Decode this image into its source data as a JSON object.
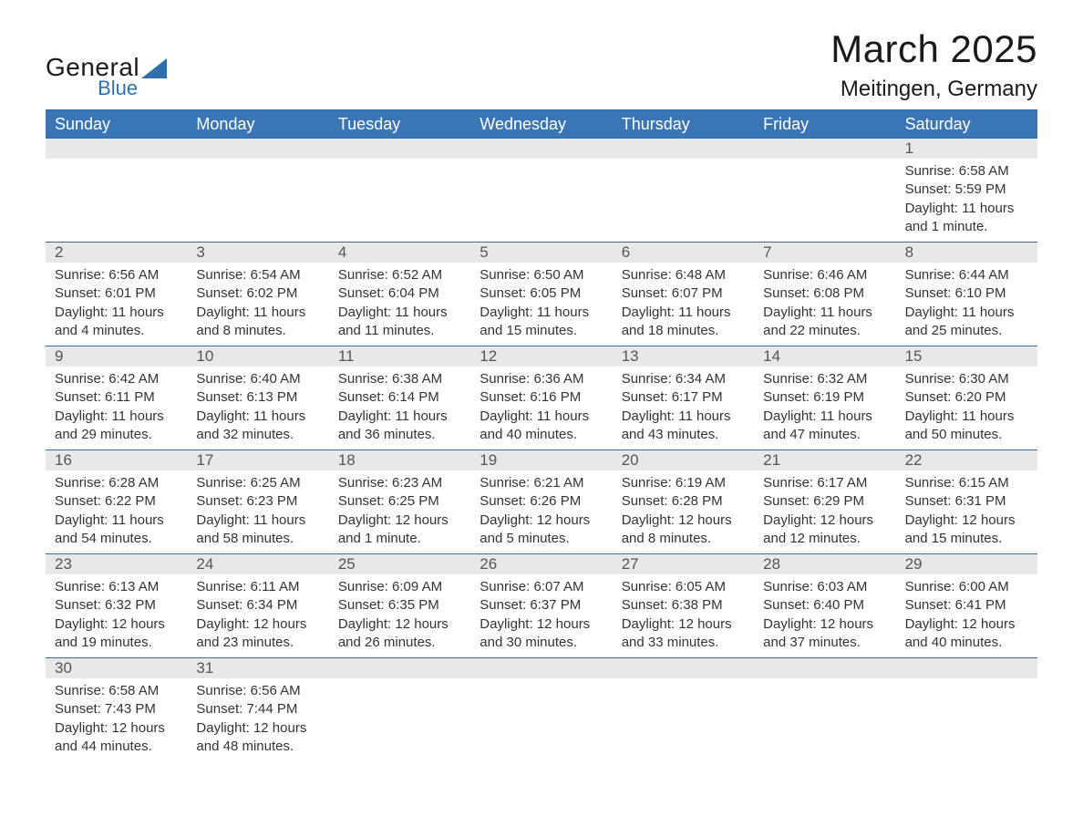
{
  "logo": {
    "text_general": "General",
    "text_blue": "Blue",
    "shape_color": "#2f6fad"
  },
  "header": {
    "month_title": "March 2025",
    "location": "Meitingen, Germany"
  },
  "colors": {
    "header_bg": "#3a76b5",
    "band_bg": "#e8e8e8",
    "rule": "#2f6fad",
    "text": "#333333",
    "text_muted": "#555555",
    "bg": "#ffffff"
  },
  "day_labels": [
    "Sunday",
    "Monday",
    "Tuesday",
    "Wednesday",
    "Thursday",
    "Friday",
    "Saturday"
  ],
  "label_prefix": {
    "sunrise": "Sunrise: ",
    "sunset": "Sunset: ",
    "daylight": "Daylight: "
  },
  "grid": {
    "leading_blanks": 6,
    "trailing_blanks": 5
  },
  "days": [
    {
      "n": "1",
      "sunrise": "6:58 AM",
      "sunset": "5:59 PM",
      "daylight": "11 hours and 1 minute."
    },
    {
      "n": "2",
      "sunrise": "6:56 AM",
      "sunset": "6:01 PM",
      "daylight": "11 hours and 4 minutes."
    },
    {
      "n": "3",
      "sunrise": "6:54 AM",
      "sunset": "6:02 PM",
      "daylight": "11 hours and 8 minutes."
    },
    {
      "n": "4",
      "sunrise": "6:52 AM",
      "sunset": "6:04 PM",
      "daylight": "11 hours and 11 minutes."
    },
    {
      "n": "5",
      "sunrise": "6:50 AM",
      "sunset": "6:05 PM",
      "daylight": "11 hours and 15 minutes."
    },
    {
      "n": "6",
      "sunrise": "6:48 AM",
      "sunset": "6:07 PM",
      "daylight": "11 hours and 18 minutes."
    },
    {
      "n": "7",
      "sunrise": "6:46 AM",
      "sunset": "6:08 PM",
      "daylight": "11 hours and 22 minutes."
    },
    {
      "n": "8",
      "sunrise": "6:44 AM",
      "sunset": "6:10 PM",
      "daylight": "11 hours and 25 minutes."
    },
    {
      "n": "9",
      "sunrise": "6:42 AM",
      "sunset": "6:11 PM",
      "daylight": "11 hours and 29 minutes."
    },
    {
      "n": "10",
      "sunrise": "6:40 AM",
      "sunset": "6:13 PM",
      "daylight": "11 hours and 32 minutes."
    },
    {
      "n": "11",
      "sunrise": "6:38 AM",
      "sunset": "6:14 PM",
      "daylight": "11 hours and 36 minutes."
    },
    {
      "n": "12",
      "sunrise": "6:36 AM",
      "sunset": "6:16 PM",
      "daylight": "11 hours and 40 minutes."
    },
    {
      "n": "13",
      "sunrise": "6:34 AM",
      "sunset": "6:17 PM",
      "daylight": "11 hours and 43 minutes."
    },
    {
      "n": "14",
      "sunrise": "6:32 AM",
      "sunset": "6:19 PM",
      "daylight": "11 hours and 47 minutes."
    },
    {
      "n": "15",
      "sunrise": "6:30 AM",
      "sunset": "6:20 PM",
      "daylight": "11 hours and 50 minutes."
    },
    {
      "n": "16",
      "sunrise": "6:28 AM",
      "sunset": "6:22 PM",
      "daylight": "11 hours and 54 minutes."
    },
    {
      "n": "17",
      "sunrise": "6:25 AM",
      "sunset": "6:23 PM",
      "daylight": "11 hours and 58 minutes."
    },
    {
      "n": "18",
      "sunrise": "6:23 AM",
      "sunset": "6:25 PM",
      "daylight": "12 hours and 1 minute."
    },
    {
      "n": "19",
      "sunrise": "6:21 AM",
      "sunset": "6:26 PM",
      "daylight": "12 hours and 5 minutes."
    },
    {
      "n": "20",
      "sunrise": "6:19 AM",
      "sunset": "6:28 PM",
      "daylight": "12 hours and 8 minutes."
    },
    {
      "n": "21",
      "sunrise": "6:17 AM",
      "sunset": "6:29 PM",
      "daylight": "12 hours and 12 minutes."
    },
    {
      "n": "22",
      "sunrise": "6:15 AM",
      "sunset": "6:31 PM",
      "daylight": "12 hours and 15 minutes."
    },
    {
      "n": "23",
      "sunrise": "6:13 AM",
      "sunset": "6:32 PM",
      "daylight": "12 hours and 19 minutes."
    },
    {
      "n": "24",
      "sunrise": "6:11 AM",
      "sunset": "6:34 PM",
      "daylight": "12 hours and 23 minutes."
    },
    {
      "n": "25",
      "sunrise": "6:09 AM",
      "sunset": "6:35 PM",
      "daylight": "12 hours and 26 minutes."
    },
    {
      "n": "26",
      "sunrise": "6:07 AM",
      "sunset": "6:37 PM",
      "daylight": "12 hours and 30 minutes."
    },
    {
      "n": "27",
      "sunrise": "6:05 AM",
      "sunset": "6:38 PM",
      "daylight": "12 hours and 33 minutes."
    },
    {
      "n": "28",
      "sunrise": "6:03 AM",
      "sunset": "6:40 PM",
      "daylight": "12 hours and 37 minutes."
    },
    {
      "n": "29",
      "sunrise": "6:00 AM",
      "sunset": "6:41 PM",
      "daylight": "12 hours and 40 minutes."
    },
    {
      "n": "30",
      "sunrise": "6:58 AM",
      "sunset": "7:43 PM",
      "daylight": "12 hours and 44 minutes."
    },
    {
      "n": "31",
      "sunrise": "6:56 AM",
      "sunset": "7:44 PM",
      "daylight": "12 hours and 48 minutes."
    }
  ]
}
